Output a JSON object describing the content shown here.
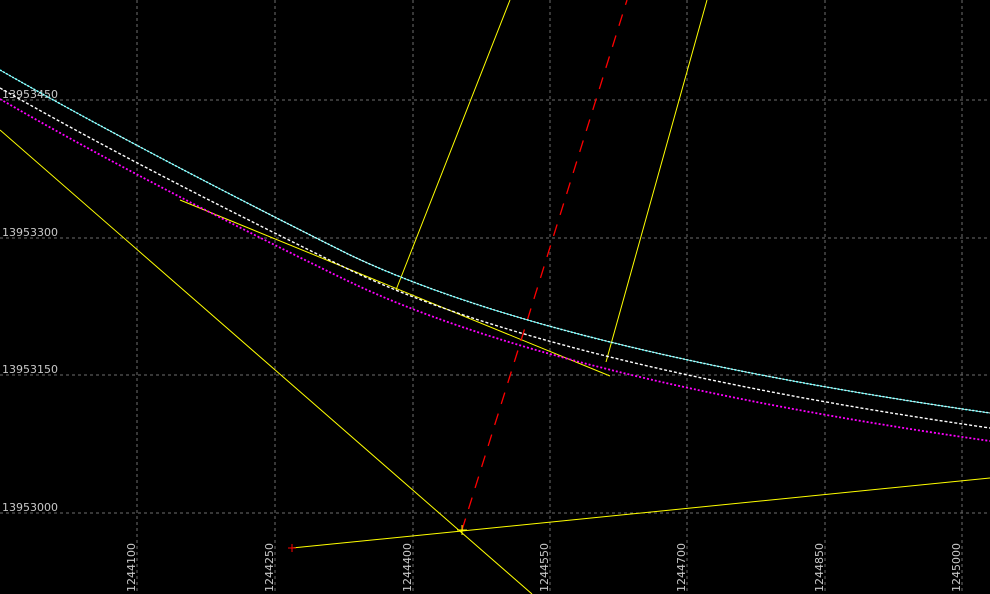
{
  "colors": {
    "background": "#000000",
    "grid": "#6e6e6e",
    "label": "#c8c8c8",
    "curve_outer": "#00ffff",
    "curve_center": "#ffffff",
    "curve_inner": "#ff00ff",
    "guide_line": "#ffff00",
    "dashed_line": "#ff0000",
    "point_marker": "#ff0000"
  },
  "y_axis_labels": [
    "13953450",
    "13953300",
    "13953150",
    "13953000"
  ],
  "x_axis_labels": [
    "1244100",
    "1244250",
    "1244400",
    "1244550",
    "1244700",
    "1244850",
    "1245000"
  ]
}
